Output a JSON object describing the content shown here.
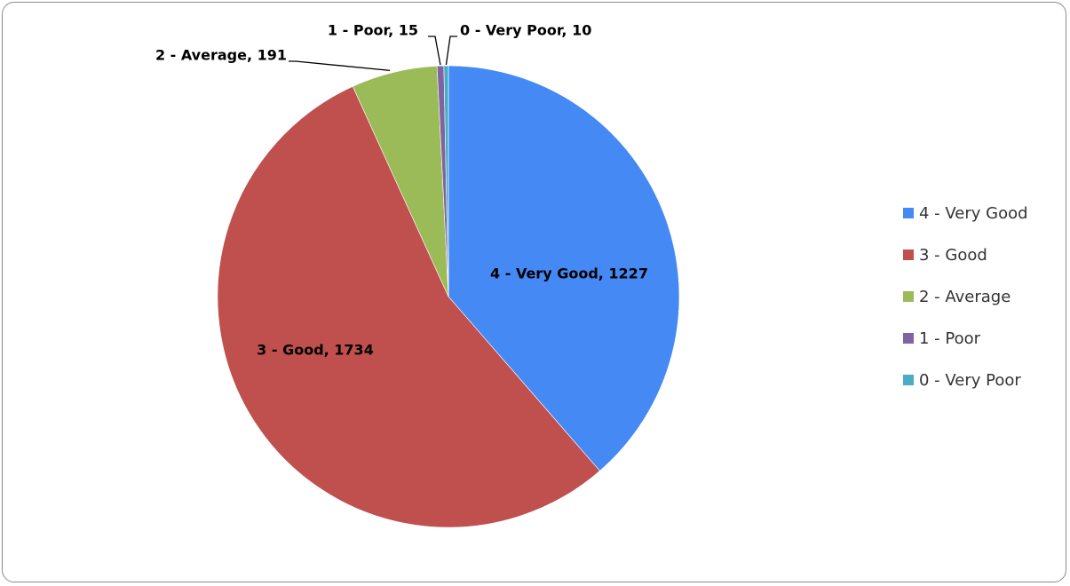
{
  "chart_data": {
    "type": "pie",
    "title": "",
    "categories": [
      "4 - Very Good",
      "3 - Good",
      "2 - Average",
      "1 - Poor",
      "0 - Very Poor"
    ],
    "values": [
      1227,
      1734,
      191,
      15,
      10
    ],
    "colors": [
      "#4589F5",
      "#C0504D",
      "#9BBB59",
      "#8064A2",
      "#4BACC6"
    ],
    "data_labels": [
      "4 - Very Good, 1227",
      "3 - Good, 1734",
      "2 - Average, 191",
      "1 - Poor, 15",
      "0 - Very Poor, 10"
    ],
    "start_angle": "12 o'clock",
    "direction": "clockwise",
    "legend": {
      "position": "right",
      "entries": [
        "4 - Very Good",
        "3 - Good",
        "2 - Average",
        "1 - Poor",
        "0 - Very Poor"
      ]
    }
  }
}
